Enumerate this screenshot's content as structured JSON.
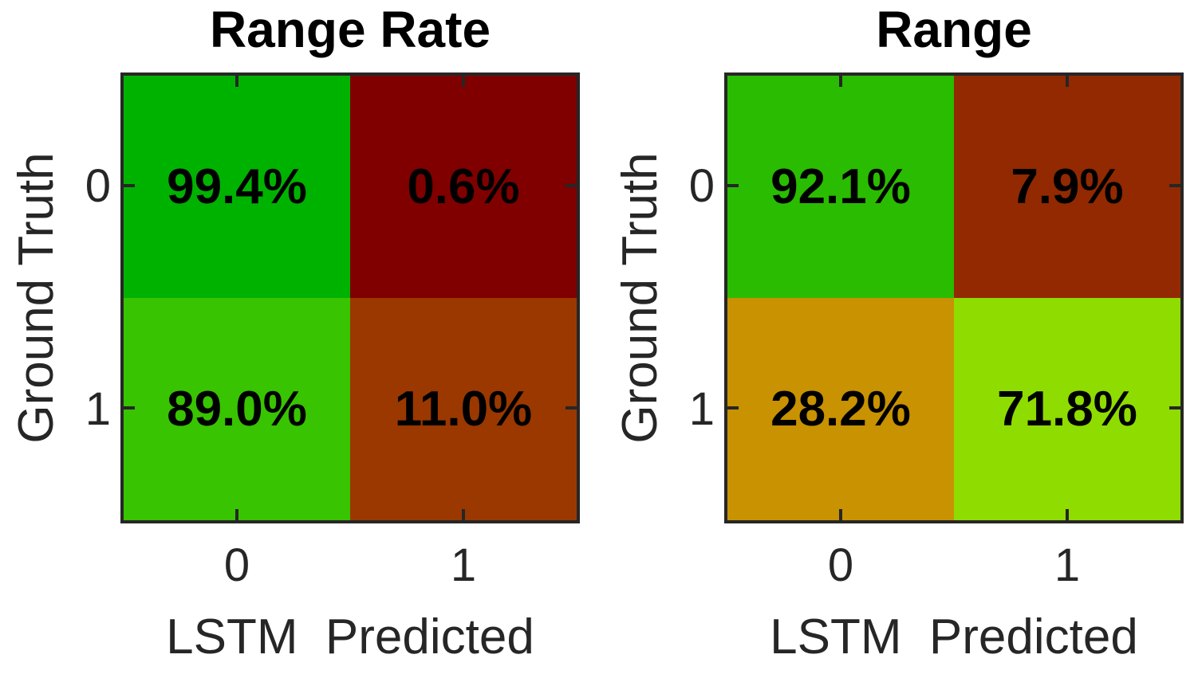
{
  "styles": {
    "background": "#FFFFFF",
    "axis_color": "#262626",
    "title_color": "#000000",
    "cell_text_color": "#000000"
  },
  "chart_data": [
    {
      "type": "heatmap",
      "title": "Range Rate",
      "xlabel": "LSTM  Predicted",
      "ylabel": "Ground Truth",
      "x_ticks": [
        "0",
        "1"
      ],
      "y_ticks": [
        "0",
        "1"
      ],
      "values": [
        [
          99.4,
          0.6
        ],
        [
          89.0,
          11.0
        ]
      ],
      "cell_labels": [
        [
          "99.4%",
          "0.6%"
        ],
        [
          "89.0%",
          "11.0%"
        ]
      ],
      "cell_colors": [
        [
          "#00B200",
          "#800000"
        ],
        [
          "#38C400",
          "#9A3800"
        ]
      ],
      "legend": "none",
      "grid": "off"
    },
    {
      "type": "heatmap",
      "title": "Range",
      "xlabel": "LSTM  Predicted",
      "ylabel": "Ground Truth",
      "x_ticks": [
        "0",
        "1"
      ],
      "y_ticks": [
        "0",
        "1"
      ],
      "values": [
        [
          92.1,
          7.9
        ],
        [
          28.2,
          71.8
        ]
      ],
      "cell_labels": [
        [
          "92.1%",
          "7.9%"
        ],
        [
          "28.2%",
          "71.8%"
        ]
      ],
      "cell_colors": [
        [
          "#2ABC00",
          "#922900"
        ],
        [
          "#C89200",
          "#8FDC00"
        ]
      ],
      "legend": "none",
      "grid": "off"
    }
  ]
}
